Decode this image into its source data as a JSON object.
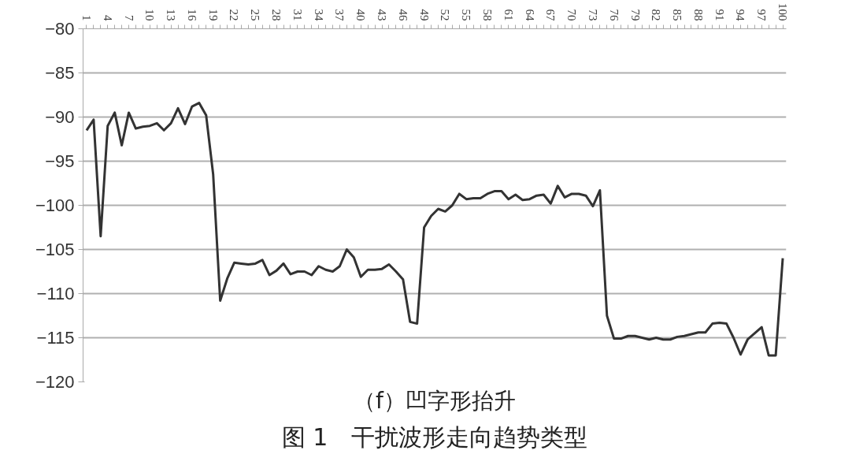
{
  "chart_data": {
    "type": "line",
    "title": "（f）凹字形抬升",
    "subtitle": "图 1　干扰波形走向趋势类型",
    "categories": [
      "1",
      null,
      null,
      "4",
      null,
      null,
      "7",
      null,
      null,
      "10",
      null,
      null,
      "13",
      null,
      null,
      "16",
      null,
      null,
      "19",
      null,
      null,
      "22",
      null,
      null,
      "25",
      null,
      null,
      "28",
      null,
      null,
      "31",
      null,
      null,
      "34",
      null,
      null,
      "37",
      null,
      null,
      "40",
      null,
      null,
      "43",
      null,
      null,
      "46",
      null,
      null,
      "49",
      null,
      null,
      "52",
      null,
      null,
      "55",
      null,
      null,
      "58",
      null,
      null,
      "61",
      null,
      null,
      "64",
      null,
      null,
      "67",
      null,
      null,
      "70",
      null,
      null,
      "73",
      null,
      null,
      "76",
      null,
      null,
      "79",
      null,
      null,
      "82",
      null,
      null,
      "85",
      null,
      null,
      "88",
      null,
      null,
      "91",
      null,
      null,
      "94",
      null,
      null,
      "97",
      null,
      null,
      "100"
    ],
    "series": [
      {
        "color": "#333333",
        "values": [
          -91.5,
          -90.3,
          -103.5,
          -91,
          -89.5,
          -93.2,
          -89.5,
          -91.3,
          -91.1,
          -91,
          -90.7,
          -91.5,
          -90.7,
          -89,
          -90.8,
          -88.8,
          -88.4,
          -89.8,
          -96.5,
          -110.8,
          -108.3,
          -106.5,
          -106.6,
          -106.7,
          -106.6,
          -106.2,
          -107.9,
          -107.4,
          -106.6,
          -107.8,
          -107.5,
          -107.5,
          -107.9,
          -106.9,
          -107.3,
          -107.5,
          -106.9,
          -105,
          -105.9,
          -108.1,
          -107.3,
          -107.3,
          -107.2,
          -106.7,
          -107.5,
          -108.4,
          -113.2,
          -113.4,
          -102.5,
          -101.2,
          -100.4,
          -100.7,
          -100,
          -98.7,
          -99.3,
          -99.2,
          -99.2,
          -98.7,
          -98.4,
          -98.4,
          -99.3,
          -98.8,
          -99.4,
          -99.3,
          -98.9,
          -98.8,
          -99.8,
          -97.8,
          -99.1,
          -98.7,
          -98.7,
          -98.9,
          -100.1,
          -98.3,
          -112.5,
          -115.1,
          -115.1,
          -114.8,
          -114.8,
          -115,
          -115.2,
          -115,
          -115.2,
          -115.2,
          -114.9,
          -114.8,
          -114.6,
          -114.4,
          -114.4,
          -113.4,
          -113.3,
          -113.4,
          -115,
          -116.9,
          -115.2,
          -114.5,
          -113.8,
          -117,
          -117,
          -106
        ]
      }
    ],
    "ylim": [
      -120,
      -80
    ],
    "yticks": [
      -120,
      -115,
      -110,
      -105,
      -100,
      -95,
      -90,
      -85,
      -80
    ],
    "grid": "y",
    "line_style": "solid"
  }
}
